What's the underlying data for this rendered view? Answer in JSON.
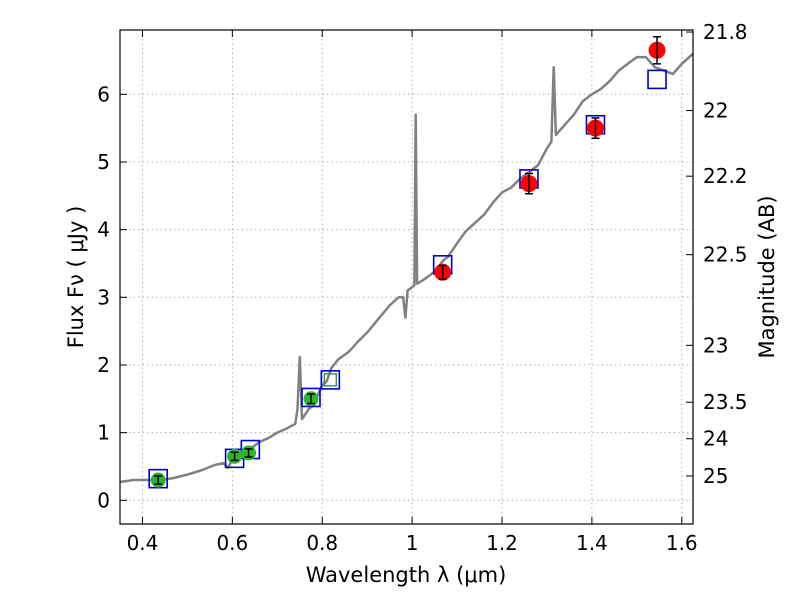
{
  "chart_data": {
    "type": "scatter",
    "xlabel": "Wavelength  λ (μm)",
    "ylabel": "Flux  Fν  ( μJy )",
    "ylabel_right": "Magnitude (AB)",
    "xlim": [
      0.35,
      1.625
    ],
    "ylim": [
      -0.35,
      6.95
    ],
    "grid": true,
    "x_ticks": [
      0.4,
      0.6,
      0.8,
      1.0,
      1.2,
      1.4,
      1.6
    ],
    "x_tick_labels": [
      "0.4",
      "0.6",
      "0.8",
      "1",
      "1.2",
      "1.4",
      "1.6"
    ],
    "y_ticks": [
      0,
      1,
      2,
      3,
      4,
      5,
      6
    ],
    "y_tick_labels": [
      "0",
      "1",
      "2",
      "3",
      "4",
      "5",
      "6"
    ],
    "mag_ticks": [
      {
        "label": "21.8",
        "flux": 6.92
      },
      {
        "label": "22",
        "flux": 5.76
      },
      {
        "label": "22.2",
        "flux": 4.79
      },
      {
        "label": "22.5",
        "flux": 3.63
      },
      {
        "label": "23",
        "flux": 2.29
      },
      {
        "label": "23.5",
        "flux": 1.45
      },
      {
        "label": "24",
        "flux": 0.91
      },
      {
        "label": "25",
        "flux": 0.36
      }
    ],
    "colors": {
      "spectrum": "#808080",
      "optical": "#2cb62c",
      "nir": "#ff0000",
      "model": "#0000cc",
      "model_highlight": "#2e8b57",
      "errorbar": "#000000",
      "grid": "#b0b0b0"
    },
    "series": [
      {
        "values": [
          {
            "x": 0.435,
            "y": 0.3,
            "err": 0.06
          },
          {
            "x": 0.605,
            "y": 0.65,
            "err": 0.06
          },
          {
            "x": 0.636,
            "y": 0.7,
            "err": 0.06
          },
          {
            "x": 0.775,
            "y": 1.5,
            "err": 0.07
          }
        ]
      },
      {
        "values": [
          {
            "x": 1.068,
            "y": 3.37,
            "err": 0.1
          },
          {
            "x": 1.26,
            "y": 4.68,
            "err": 0.15
          },
          {
            "x": 1.408,
            "y": 5.5,
            "err": 0.15
          },
          {
            "x": 1.545,
            "y": 6.65,
            "err": 0.2
          }
        ]
      },
      {
        "values": [
          {
            "x": 0.435,
            "y": 0.32
          },
          {
            "x": 0.605,
            "y": 0.62
          },
          {
            "x": 0.64,
            "y": 0.75
          },
          {
            "x": 0.775,
            "y": 1.52
          },
          {
            "x": 0.818,
            "y": 1.78
          },
          {
            "x": 1.068,
            "y": 3.48
          },
          {
            "x": 1.26,
            "y": 4.75
          },
          {
            "x": 1.408,
            "y": 5.55
          },
          {
            "x": 1.545,
            "y": 6.22
          }
        ]
      },
      {
        "values": [
          [
            0.35,
            0.27
          ],
          [
            0.38,
            0.3
          ],
          [
            0.41,
            0.3
          ],
          [
            0.44,
            0.3
          ],
          [
            0.47,
            0.33
          ],
          [
            0.5,
            0.38
          ],
          [
            0.53,
            0.44
          ],
          [
            0.56,
            0.52
          ],
          [
            0.58,
            0.55
          ],
          [
            0.59,
            0.48
          ],
          [
            0.6,
            0.6
          ],
          [
            0.62,
            0.66
          ],
          [
            0.64,
            0.76
          ],
          [
            0.66,
            0.86
          ],
          [
            0.68,
            0.92
          ],
          [
            0.7,
            1.0
          ],
          [
            0.72,
            1.06
          ],
          [
            0.74,
            1.13
          ],
          [
            0.745,
            1.35
          ],
          [
            0.75,
            2.12
          ],
          [
            0.755,
            1.2
          ],
          [
            0.77,
            1.35
          ],
          [
            0.78,
            1.4
          ],
          [
            0.79,
            1.55
          ],
          [
            0.8,
            1.7
          ],
          [
            0.81,
            1.76
          ],
          [
            0.82,
            1.95
          ],
          [
            0.835,
            2.08
          ],
          [
            0.86,
            2.2
          ],
          [
            0.88,
            2.35
          ],
          [
            0.9,
            2.48
          ],
          [
            0.93,
            2.72
          ],
          [
            0.95,
            2.88
          ],
          [
            0.97,
            3.0
          ],
          [
            0.98,
            3.0
          ],
          [
            0.985,
            2.7
          ],
          [
            0.99,
            3.1
          ],
          [
            1.0,
            3.15
          ],
          [
            1.005,
            3.18
          ],
          [
            1.008,
            5.7
          ],
          [
            1.011,
            3.2
          ],
          [
            1.03,
            3.28
          ],
          [
            1.05,
            3.38
          ],
          [
            1.07,
            3.55
          ],
          [
            1.08,
            3.6
          ],
          [
            1.1,
            3.8
          ],
          [
            1.12,
            3.98
          ],
          [
            1.14,
            4.1
          ],
          [
            1.16,
            4.22
          ],
          [
            1.18,
            4.4
          ],
          [
            1.2,
            4.55
          ],
          [
            1.22,
            4.62
          ],
          [
            1.24,
            4.75
          ],
          [
            1.26,
            4.85
          ],
          [
            1.28,
            4.95
          ],
          [
            1.3,
            5.2
          ],
          [
            1.31,
            5.3
          ],
          [
            1.315,
            6.4
          ],
          [
            1.32,
            5.4
          ],
          [
            1.34,
            5.55
          ],
          [
            1.36,
            5.7
          ],
          [
            1.38,
            5.9
          ],
          [
            1.4,
            6.0
          ],
          [
            1.42,
            6.08
          ],
          [
            1.44,
            6.2
          ],
          [
            1.46,
            6.35
          ],
          [
            1.48,
            6.45
          ],
          [
            1.5,
            6.55
          ],
          [
            1.52,
            6.55
          ],
          [
            1.54,
            6.4
          ],
          [
            1.56,
            6.35
          ],
          [
            1.58,
            6.3
          ],
          [
            1.6,
            6.45
          ],
          [
            1.625,
            6.6
          ]
        ]
      }
    ]
  }
}
